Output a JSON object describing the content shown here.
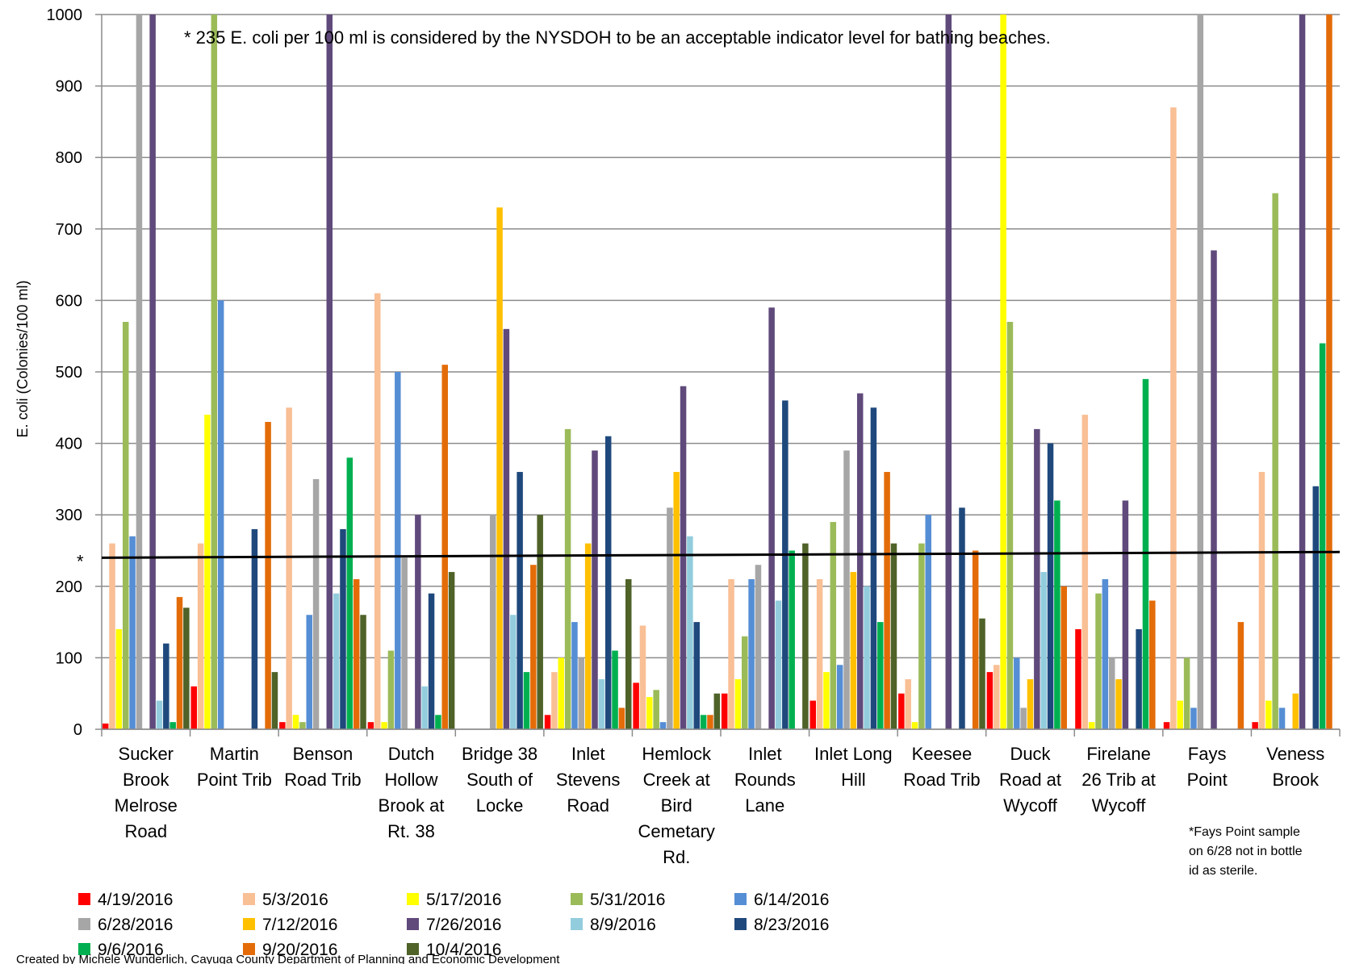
{
  "chart_data": {
    "type": "bar",
    "title": "",
    "ylabel": "E. coli (Colonies/100 ml)",
    "ylim": [
      0,
      1000
    ],
    "yticks": [
      "0",
      "100",
      "200",
      "300",
      "400",
      "500",
      "600",
      "700",
      "800",
      "900",
      "1000"
    ],
    "grid": true,
    "legend_position": "bottom",
    "categories": [
      "Sucker Brook Melrose Road",
      "Martin Point Trib",
      "Benson Road Trib",
      "Dutch Hollow Brook at Rt. 38",
      "Bridge 38 South of Locke",
      "Inlet Stevens Road",
      "Hemlock Creek at Bird Cemetary Rd.",
      "Inlet Rounds Lane",
      "Inlet Long Hill",
      "Keesee Road Trib",
      "Duck Road at Wycoff",
      "Firelane 26 Trib at Wycoff",
      "Fays Point",
      "Veness Brook"
    ],
    "category_label_lines": [
      [
        "Sucker",
        "Brook",
        "Melrose",
        "Road"
      ],
      [
        "Martin",
        "Point Trib"
      ],
      [
        "Benson",
        "Road Trib"
      ],
      [
        "Dutch",
        "Hollow",
        "Brook at",
        "Rt. 38"
      ],
      [
        "Bridge 38",
        "South of",
        "Locke"
      ],
      [
        "Inlet",
        "Stevens",
        "Road"
      ],
      [
        "Hemlock",
        "Creek at",
        "Bird",
        "Cemetary",
        "Rd."
      ],
      [
        "Inlet",
        "Rounds",
        "Lane"
      ],
      [
        "Inlet Long",
        "Hill"
      ],
      [
        "Keesee",
        "Road Trib"
      ],
      [
        "Duck",
        "Road at",
        "Wycoff"
      ],
      [
        "Firelane",
        "26 Trib at",
        "Wycoff"
      ],
      [
        "Fays",
        "Point"
      ],
      [
        "Veness",
        "Brook"
      ]
    ],
    "series": [
      {
        "name": "4/19/2016",
        "color": "#FF0000",
        "values": [
          8,
          60,
          10,
          10,
          0,
          20,
          65,
          50,
          40,
          50,
          80,
          140,
          10,
          10
        ]
      },
      {
        "name": "5/3/2016",
        "color": "#F9BF95",
        "values": [
          260,
          260,
          450,
          610,
          0,
          80,
          145,
          210,
          210,
          70,
          90,
          440,
          870,
          360
        ]
      },
      {
        "name": "5/17/2016",
        "color": "#FFFF00",
        "values": [
          140,
          440,
          20,
          10,
          0,
          100,
          45,
          70,
          80,
          10,
          1000,
          10,
          40,
          40
        ]
      },
      {
        "name": "5/31/2016",
        "color": "#9BBB59",
        "values": [
          570,
          1000,
          10,
          110,
          0,
          420,
          55,
          130,
          290,
          260,
          570,
          190,
          100,
          750
        ]
      },
      {
        "name": "6/14/2016",
        "color": "#558ED5",
        "values": [
          270,
          600,
          160,
          500,
          0,
          150,
          10,
          210,
          90,
          300,
          100,
          210,
          30,
          30
        ]
      },
      {
        "name": "6/28/2016",
        "color": "#A6A6A6",
        "values": [
          1000,
          0,
          350,
          240,
          300,
          100,
          310,
          230,
          390,
          0,
          30,
          100,
          1000,
          0
        ]
      },
      {
        "name": "7/12/2016",
        "color": "#FFC000",
        "values": [
          0,
          0,
          0,
          0,
          730,
          260,
          360,
          0,
          220,
          0,
          70,
          70,
          0,
          50
        ]
      },
      {
        "name": "7/26/2016",
        "color": "#604A7B",
        "values": [
          1000,
          0,
          1000,
          300,
          560,
          390,
          480,
          590,
          470,
          1000,
          420,
          320,
          670,
          1000
        ]
      },
      {
        "name": "8/9/2016",
        "color": "#93CDDD",
        "values": [
          40,
          0,
          190,
          60,
          160,
          70,
          270,
          180,
          200,
          0,
          220,
          0,
          0,
          0
        ]
      },
      {
        "name": "8/23/2016",
        "color": "#1F497D",
        "values": [
          120,
          280,
          280,
          190,
          360,
          410,
          150,
          460,
          450,
          310,
          400,
          140,
          0,
          340
        ]
      },
      {
        "name": "9/6/2016",
        "color": "#00B050",
        "values": [
          10,
          0,
          380,
          20,
          80,
          110,
          20,
          250,
          150,
          0,
          320,
          490,
          0,
          540
        ]
      },
      {
        "name": "9/20/2016",
        "color": "#E36C09",
        "values": [
          185,
          430,
          210,
          510,
          230,
          30,
          20,
          0,
          360,
          250,
          200,
          180,
          150,
          1000
        ]
      },
      {
        "name": "10/4/2016",
        "color": "#4F6228",
        "values": [
          170,
          80,
          160,
          220,
          300,
          210,
          50,
          260,
          260,
          155,
          0,
          0,
          0,
          0
        ]
      }
    ],
    "reference_line": {
      "start_value": 240,
      "end_value": 248,
      "color": "#000000",
      "marker": "*"
    },
    "annotations": {
      "threshold_note": "* 235 E. coli per 100 ml is considered by the NYSDOH to be an acceptable indicator level for bathing beaches.",
      "fays_note_lines": [
        "*Fays Point sample",
        "on 6/28 not in bottle",
        "id as sterile."
      ],
      "credit": "Created by Michele Wunderlich, Cayuga County Department of Planning and Economic Development"
    }
  }
}
